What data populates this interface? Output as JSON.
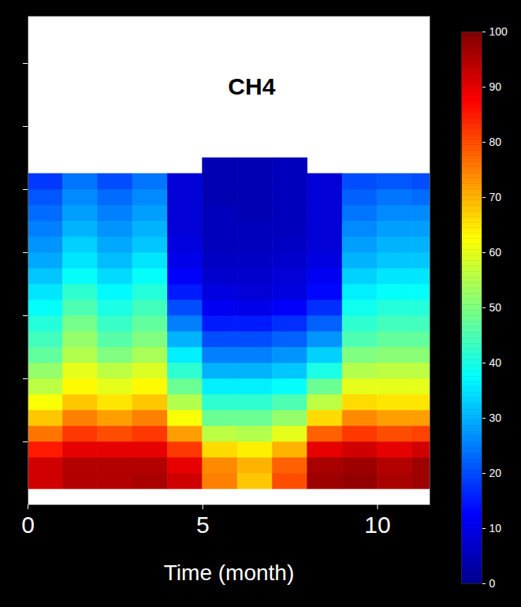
{
  "chart_data": {
    "type": "heatmap",
    "x_label": "Time (month)",
    "xlim": [
      0,
      11.5
    ],
    "xticks": [
      0,
      5,
      10
    ],
    "ylim": [
      0,
      31
    ],
    "yticks": [
      4,
      8,
      12,
      16,
      20,
      24,
      28
    ],
    "tick_labels": "x",
    "annotations": [
      {
        "text": "CH4",
        "x": 6.4,
        "y": 26.5
      }
    ],
    "x_edges": [
      0,
      1,
      2,
      3,
      4,
      5,
      6,
      7,
      8,
      9,
      10,
      11,
      12
    ],
    "y_edges": [
      1,
      2,
      3,
      4,
      5,
      6,
      7,
      8,
      9,
      10,
      11,
      12,
      13,
      14,
      15,
      16,
      17,
      18,
      19,
      20,
      21,
      22
    ],
    "z": [
      [
        92,
        92,
        85,
        76,
        68,
        62,
        56,
        52,
        47,
        44,
        41,
        38,
        35,
        32,
        29,
        27,
        25,
        23,
        21,
        18,
        null
      ],
      [
        95,
        95,
        90,
        82,
        75,
        68,
        63,
        60,
        55,
        52,
        49,
        45,
        42,
        38,
        35,
        33,
        30,
        28,
        26,
        24,
        null
      ],
      [
        95,
        95,
        90,
        80,
        72,
        65,
        60,
        56,
        50,
        46,
        43,
        40,
        37,
        34,
        31,
        29,
        27,
        25,
        23,
        20,
        null
      ],
      [
        96,
        95,
        90,
        82,
        75,
        68,
        63,
        59,
        54,
        50,
        47,
        44,
        41,
        38,
        35,
        32,
        30,
        28,
        26,
        24,
        null
      ],
      [
        92,
        90,
        82,
        72,
        62,
        55,
        48,
        42,
        36,
        30,
        25,
        20,
        15,
        12,
        10,
        9,
        8,
        8,
        8,
        8,
        null
      ],
      [
        75,
        74,
        66,
        56,
        48,
        42,
        36,
        30,
        25,
        20,
        15,
        11,
        9,
        7,
        6,
        5,
        5,
        5,
        4,
        4,
        4
      ],
      [
        68,
        70,
        64,
        55,
        48,
        42,
        36,
        30,
        25,
        20,
        15,
        10,
        8,
        7,
        6,
        5,
        5,
        4,
        4,
        4,
        4
      ],
      [
        80,
        78,
        70,
        60,
        52,
        45,
        38,
        32,
        27,
        22,
        17,
        12,
        9,
        8,
        7,
        6,
        5,
        5,
        5,
        5,
        5
      ],
      [
        97,
        96,
        90,
        78,
        66,
        56,
        48,
        40,
        33,
        27,
        22,
        17,
        13,
        11,
        9,
        8,
        8,
        8,
        8,
        8,
        null
      ],
      [
        98,
        97,
        92,
        82,
        74,
        66,
        60,
        55,
        50,
        45,
        42,
        39,
        36,
        33,
        30,
        28,
        26,
        24,
        22,
        20,
        null
      ],
      [
        96,
        95,
        90,
        80,
        72,
        65,
        60,
        56,
        51,
        47,
        44,
        41,
        38,
        35,
        32,
        30,
        28,
        26,
        24,
        21,
        null
      ],
      [
        97,
        97,
        92,
        81,
        72,
        65,
        60,
        56,
        51,
        47,
        44,
        41,
        38,
        35,
        32,
        30,
        28,
        26,
        23,
        20,
        null
      ]
    ],
    "colorbar_lim": [
      0,
      100
    ],
    "colorbar_ticks": [
      0,
      10,
      20,
      30,
      40,
      50,
      60,
      70,
      80,
      90,
      100
    ]
  }
}
